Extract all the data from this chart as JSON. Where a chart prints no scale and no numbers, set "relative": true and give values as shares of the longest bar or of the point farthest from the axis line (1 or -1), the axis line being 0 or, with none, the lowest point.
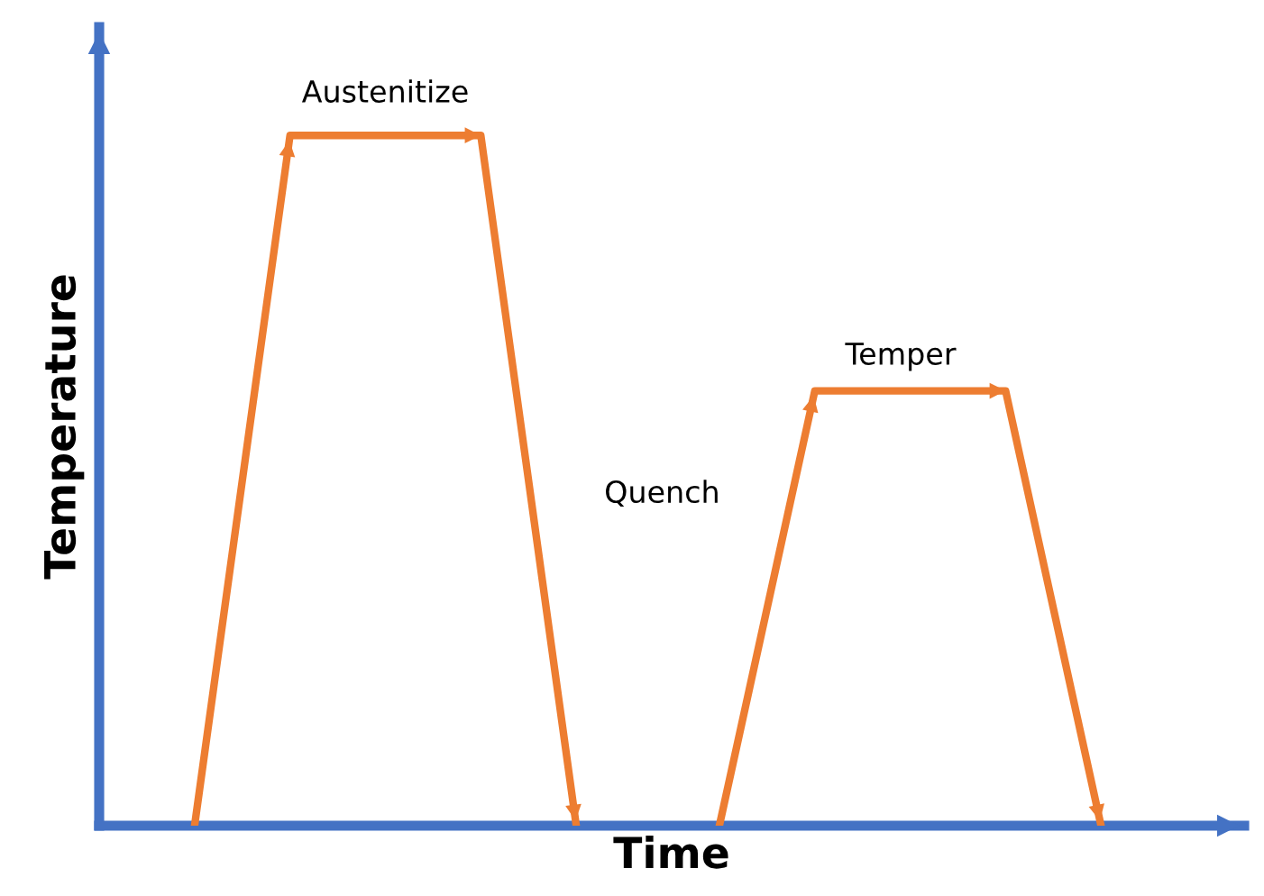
{
  "chart_data": {
    "type": "line",
    "relative": true,
    "xlabel": "Time",
    "ylabel": "Temperature",
    "categories": [
      null,
      null,
      null,
      null,
      null,
      null,
      null,
      null,
      null,
      null,
      null,
      null,
      null,
      null,
      null,
      null,
      null,
      null,
      null,
      null
    ],
    "series": [
      {
        "color": "#ed7d31",
        "values": [
          0,
          null,
          1,
          null,
          null,
          null,
          1,
          null,
          0,
          null,
          null,
          null,
          null,
          null,
          null,
          null,
          null,
          null,
          null,
          null
        ]
      },
      {
        "color": "#ed7d31",
        "values": [
          null,
          null,
          null,
          null,
          null,
          null,
          null,
          null,
          null,
          null,
          null,
          0,
          null,
          0.63,
          null,
          null,
          null,
          0.63,
          null,
          0
        ]
      }
    ],
    "annotations": [
      "Austenitize",
      "Quench",
      "Temper"
    ],
    "legend": false,
    "marker": "none",
    "line_style": "solid"
  }
}
